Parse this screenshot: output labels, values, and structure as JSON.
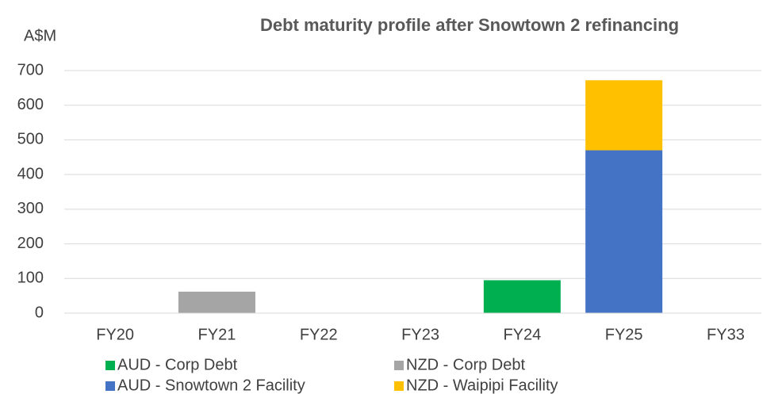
{
  "chart_data": {
    "type": "stacked_bar",
    "title": "Debt maturity profile after Snowtown 2  refinancing",
    "y_label": "A$M",
    "categories": [
      "FY20",
      "FY21",
      "FY22",
      "FY23",
      "FY24",
      "FY25",
      "FY33"
    ],
    "series": [
      {
        "name": "AUD - Corp Debt",
        "color": "#00b050",
        "values": [
          0,
          0,
          0,
          0,
          95,
          0,
          0
        ]
      },
      {
        "name": "NZD - Corp Debt",
        "color": "#a5a5a5",
        "values": [
          0,
          62,
          0,
          0,
          0,
          0,
          0
        ]
      },
      {
        "name": "AUD - Snowtown 2 Facility",
        "color": "#4472c4",
        "values": [
          0,
          0,
          0,
          0,
          0,
          470,
          0
        ]
      },
      {
        "name": "NZD - Waipipi Facility",
        "color": "#ffc000",
        "values": [
          0,
          0,
          0,
          0,
          0,
          202,
          0
        ]
      }
    ],
    "ylim": [
      0,
      700
    ],
    "yticks": [
      0,
      100,
      200,
      300,
      400,
      500,
      600,
      700
    ],
    "grid": true
  }
}
